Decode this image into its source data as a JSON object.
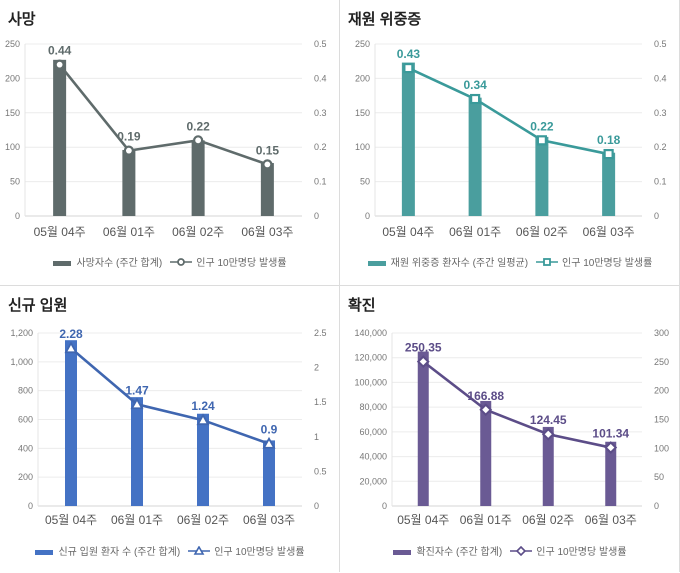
{
  "chart_data": [
    {
      "type": "bar",
      "title": "사망",
      "categories": [
        "05월 04주",
        "06월 01주",
        "06월 02주",
        "06월 03주"
      ],
      "series": [
        {
          "name": "사망자수 (주간 합계)",
          "kind": "bar",
          "axis": "left",
          "values": [
            227,
            96,
            110,
            77
          ],
          "color": "#5f6b6b"
        },
        {
          "name": "인구 10만명당 발생률",
          "kind": "line",
          "axis": "right",
          "marker": "circle",
          "values": [
            0.44,
            0.19,
            0.22,
            0.15
          ],
          "labels": [
            "0.44",
            "0.19",
            "0.22",
            "0.15"
          ],
          "color": "#5f6b6b"
        }
      ],
      "ylim_left": [
        0,
        250
      ],
      "yticks_left": [
        "0",
        "50",
        "100",
        "150",
        "200",
        "250"
      ],
      "ylim_right": [
        0,
        0.5
      ],
      "yticks_right": [
        "0",
        "0.1",
        "0.2",
        "0.3",
        "0.4",
        "0.5"
      ],
      "grid": true,
      "legend": "bottom"
    },
    {
      "type": "bar",
      "title": "재원 위중증",
      "categories": [
        "05월 04주",
        "06월 01주",
        "06월 02주",
        "06월 03주"
      ],
      "series": [
        {
          "name": "재원 위중증 환자수 (주간 일평균)",
          "kind": "bar",
          "axis": "left",
          "values": [
            223,
            172,
            115,
            92
          ],
          "color": "#4a9e9e"
        },
        {
          "name": "인구 10만명당 발생률",
          "kind": "line",
          "axis": "right",
          "marker": "square",
          "values": [
            0.43,
            0.34,
            0.22,
            0.18
          ],
          "labels": [
            "0.43",
            "0.34",
            "0.22",
            "0.18"
          ],
          "color": "#3a9a9a"
        }
      ],
      "ylim_left": [
        0,
        250
      ],
      "yticks_left": [
        "0",
        "50",
        "100",
        "150",
        "200",
        "250"
      ],
      "ylim_right": [
        0,
        0.5
      ],
      "yticks_right": [
        "0",
        "0.1",
        "0.2",
        "0.3",
        "0.4",
        "0.5"
      ],
      "grid": true,
      "legend": "bottom"
    },
    {
      "type": "bar",
      "title": "신규 입원",
      "categories": [
        "05월 04주",
        "06월 01주",
        "06월 02주",
        "06월 03주"
      ],
      "series": [
        {
          "name": "신규 입원 환자 수 (주간 합계)",
          "kind": "bar",
          "axis": "left",
          "values": [
            1150,
            755,
            640,
            455
          ],
          "color": "#4472c4"
        },
        {
          "name": "인구 10만명당 발생률",
          "kind": "line",
          "axis": "right",
          "marker": "triangle",
          "values": [
            2.28,
            1.47,
            1.24,
            0.9
          ],
          "labels": [
            "2.28",
            "1.47",
            "1.24",
            "0.9"
          ],
          "color": "#3f66b0"
        }
      ],
      "ylim_left": [
        0,
        1200
      ],
      "yticks_left": [
        "0",
        "200",
        "400",
        "600",
        "800",
        "1,000",
        "1,200"
      ],
      "ylim_right": [
        0,
        2.5
      ],
      "yticks_right": [
        "0",
        "0.5",
        "1",
        "1.5",
        "2",
        "2.5"
      ],
      "grid": true,
      "legend": "bottom"
    },
    {
      "type": "bar",
      "title": "확진",
      "categories": [
        "05월 04주",
        "06월 01주",
        "06월 02주",
        "06월 03주"
      ],
      "series": [
        {
          "name": "확진자수 (주간 합계)",
          "kind": "bar",
          "axis": "left",
          "values": [
            125000,
            85000,
            64000,
            52000
          ],
          "color": "#6a5a94"
        },
        {
          "name": "인구 10만명당 발생률",
          "kind": "line",
          "axis": "right",
          "marker": "diamond",
          "values": [
            250.35,
            166.88,
            124.45,
            101.34
          ],
          "labels": [
            "250.35",
            "166.88",
            "124.45",
            "101.34"
          ],
          "color": "#5c4d88"
        }
      ],
      "ylim_left": [
        0,
        140000
      ],
      "yticks_left": [
        "0",
        "20,000",
        "40,000",
        "60,000",
        "80,000",
        "100,000",
        "120,000",
        "140,000"
      ],
      "ylim_right": [
        0,
        300
      ],
      "yticks_right": [
        "0",
        "50",
        "100",
        "150",
        "200",
        "250",
        "300"
      ],
      "grid": true,
      "legend": "bottom"
    }
  ]
}
